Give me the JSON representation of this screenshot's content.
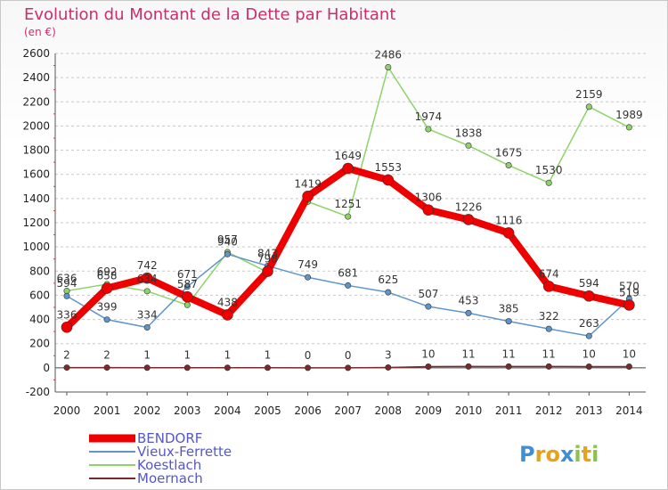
{
  "header": {
    "title": "Evolution du Montant de la Dette par Habitant",
    "subtitle": "(en €)"
  },
  "logo": {
    "text": "Proxiti"
  },
  "chart_data": {
    "type": "line",
    "title": "Evolution du Montant de la Dette par Habitant",
    "ylabel": "(en €)",
    "xlabel": "",
    "ylim": [
      -200,
      2600
    ],
    "y_ticks": [
      -200,
      0,
      200,
      400,
      600,
      800,
      1000,
      1200,
      1400,
      1600,
      1800,
      2000,
      2200,
      2400,
      2600
    ],
    "grid": "horizontal dashed",
    "legend": "bottom-left",
    "categories": [
      "2000",
      "2001",
      "2002",
      "2003",
      "2004",
      "2005",
      "2006",
      "2007",
      "2008",
      "2009",
      "2010",
      "2011",
      "2012",
      "2013",
      "2014"
    ],
    "series": [
      {
        "name": "BENDORF",
        "color": "#ee0000",
        "values": [
          336,
          658,
          742,
          587,
          438,
          798,
          1419,
          1649,
          1553,
          1306,
          1226,
          1116,
          674,
          594,
          519
        ]
      },
      {
        "name": "Vieux-Ferrette",
        "color": "#5f95c9",
        "values": [
          594,
          399,
          334,
          671,
          940,
          843,
          749,
          681,
          625,
          507,
          453,
          385,
          322,
          263,
          570
        ]
      },
      {
        "name": "Koestlach",
        "color": "#8ed36a",
        "values": [
          636,
          692,
          634,
          520,
          957,
          790,
          1374,
          1251,
          2486,
          1974,
          1838,
          1675,
          1530,
          2159,
          1989
        ]
      },
      {
        "name": "Moernach",
        "color": "#7a2a2a",
        "values": [
          2,
          2,
          1,
          1,
          1,
          1,
          0,
          0,
          3,
          10,
          11,
          11,
          11,
          10,
          10
        ]
      }
    ],
    "data_labels": {
      "BENDORF": [
        "336",
        "658",
        "742",
        "587",
        "438",
        "798",
        "1419",
        "1649",
        "1553",
        "1306",
        "1226",
        "1116",
        "674",
        "594",
        "519"
      ],
      "Vieux-Ferrette": [
        "594",
        "399",
        "334",
        "671",
        "940",
        "843",
        "749",
        "681",
        "625",
        "507",
        "453",
        "385",
        "322",
        "263",
        "570"
      ],
      "Koestlach": [
        "636",
        "692",
        "634",
        "",
        "957",
        "",
        "",
        "1251",
        "2486",
        "1974",
        "1838",
        "1675",
        "1530",
        "2159",
        "1989"
      ],
      "Moernach": [
        "2",
        "2",
        "1",
        "1",
        "1",
        "1",
        "0",
        "0",
        "3",
        "10",
        "11",
        "11",
        "11",
        "10",
        "10"
      ]
    }
  }
}
